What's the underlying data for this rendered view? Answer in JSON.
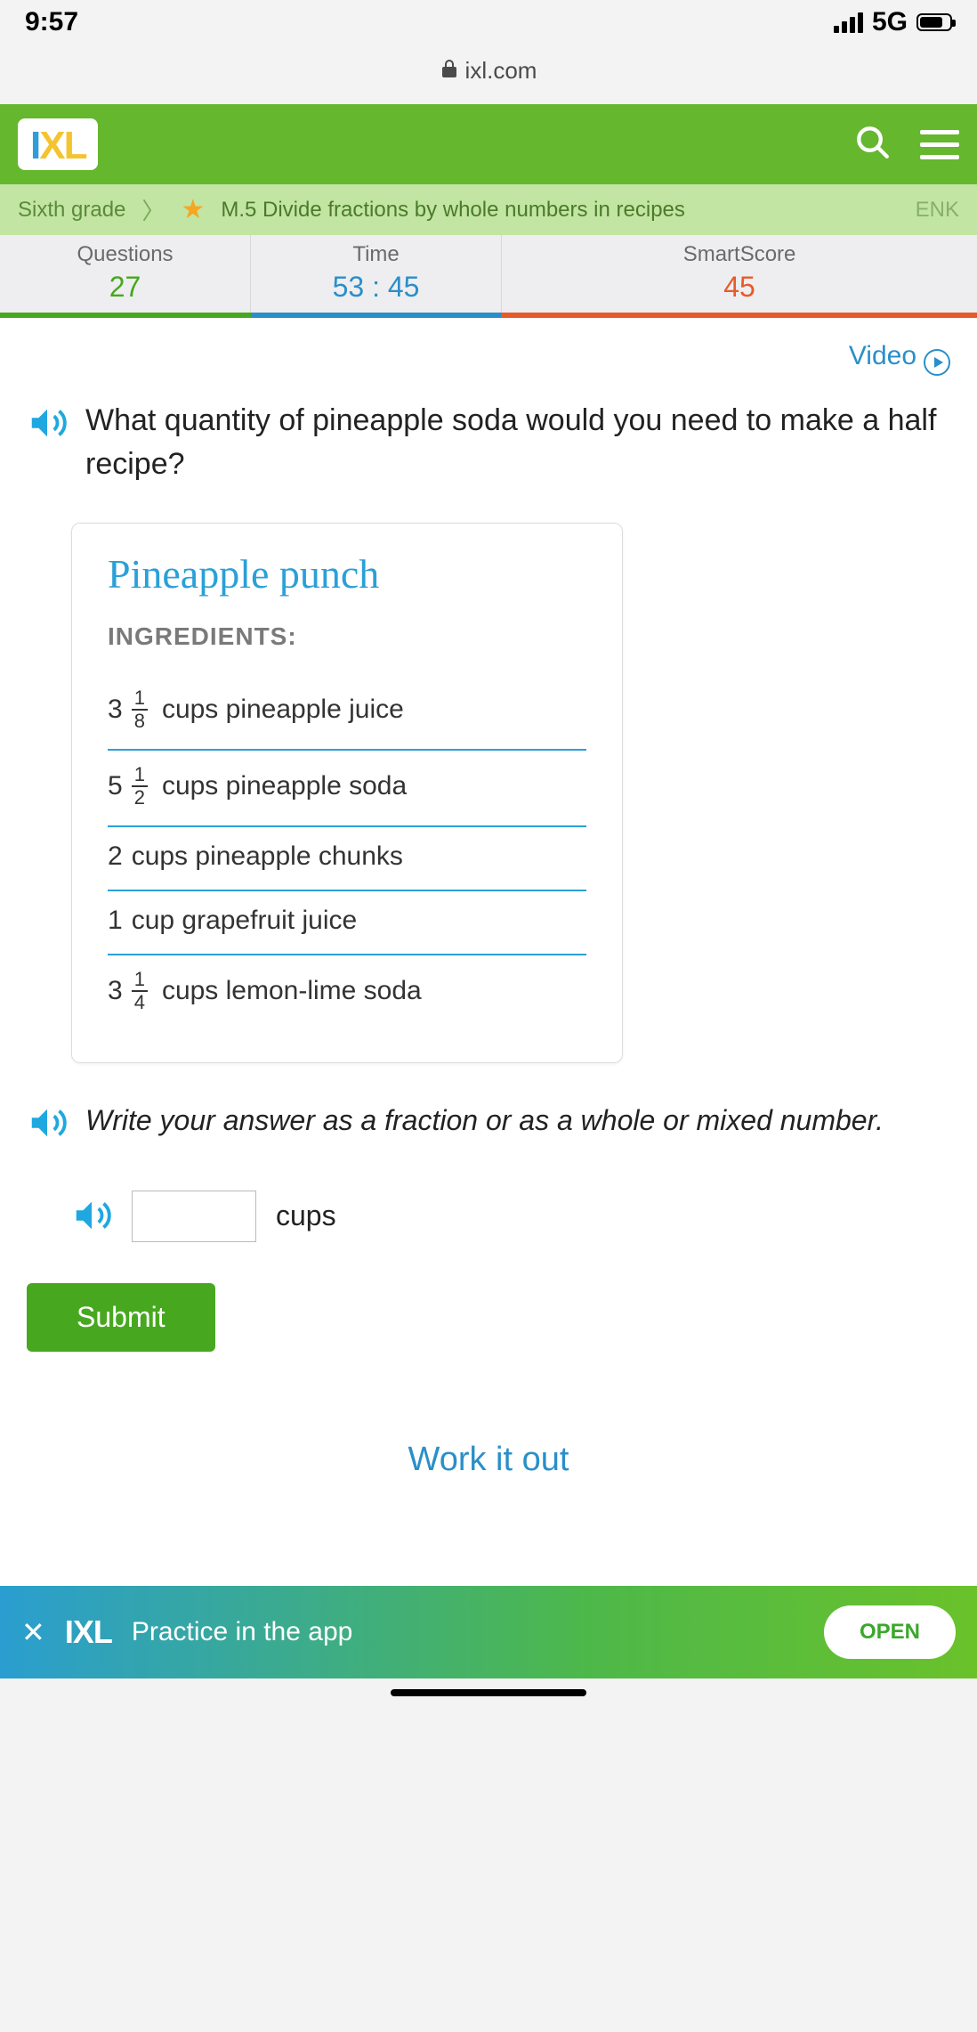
{
  "statusbar": {
    "time": "9:57",
    "network": "5G"
  },
  "urlbar": {
    "domain": "ixl.com"
  },
  "breadcrumb": {
    "grade": "Sixth grade",
    "skill": "M.5 Divide fractions by whole numbers in recipes",
    "code": "ENK"
  },
  "stats": {
    "questions_label": "Questions",
    "questions": "27",
    "time_label": "Time",
    "time": "53 : 45",
    "score_label": "SmartScore",
    "score": "45"
  },
  "video_link": "Video",
  "question": "What quantity of pineapple soda would you need to make a half recipe?",
  "recipe": {
    "title": "Pineapple punch",
    "ingredients_heading": "INGREDIENTS:",
    "items": [
      {
        "whole": "3",
        "num": "1",
        "den": "8",
        "rest": "cups pineapple juice"
      },
      {
        "whole": "5",
        "num": "1",
        "den": "2",
        "rest": "cups pineapple soda"
      },
      {
        "whole": "2",
        "num": "",
        "den": "",
        "rest": "cups pineapple chunks"
      },
      {
        "whole": "1",
        "num": "",
        "den": "",
        "rest": "cup grapefruit juice"
      },
      {
        "whole": "3",
        "num": "1",
        "den": "4",
        "rest": "cups lemon-lime soda"
      }
    ]
  },
  "hint": "Write your answer as a fraction or as a whole or mixed number.",
  "answer_unit": "cups",
  "submit_label": "Submit",
  "workitout": "Work it out",
  "banner": {
    "text": "Practice in the app",
    "open": "OPEN"
  },
  "colors": {
    "brand_green": "#65b72e",
    "ixl_blue": "#2a8fc9",
    "stat_green": "#47a81f",
    "stat_blue": "#2a8fc9",
    "stat_orange": "#e85a2a"
  }
}
